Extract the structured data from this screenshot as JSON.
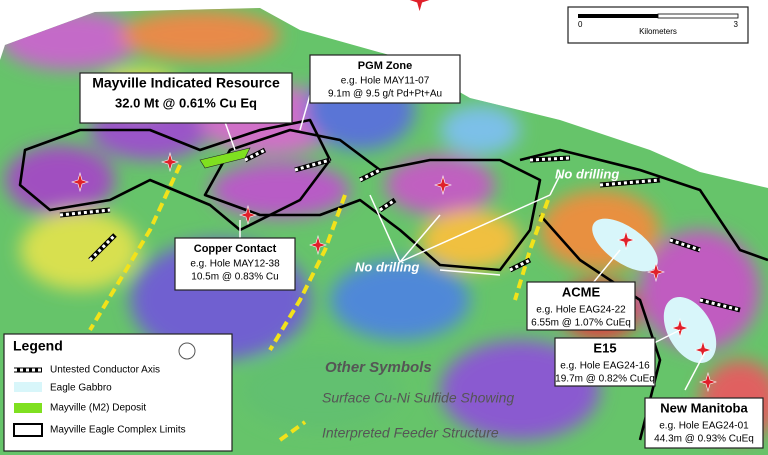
{
  "scale_bar": {
    "min": 0,
    "max": 3,
    "unit": "Kilometers"
  },
  "callouts": [
    {
      "title": "Mayville Indicated Resource",
      "lines": [
        "32.0 Mt @ 0.61% Cu Eq"
      ]
    },
    {
      "title": "PGM Zone",
      "lines": [
        "e.g. Hole MAY11-07",
        "9.1m @ 9.5 g/t Pd+Pt+Au"
      ]
    },
    {
      "title": "Copper Contact",
      "lines": [
        "e.g. Hole MAY12-38",
        "10.5m @ 0.83% Cu"
      ]
    },
    {
      "title": "ACME",
      "lines": [
        "e.g. Hole EAG24-22",
        "6.55m @ 1.07% CuEq"
      ]
    },
    {
      "title": "E15",
      "lines": [
        "e.g. Hole EAG24-16",
        "19.7m @ 0.82% CuEq"
      ]
    },
    {
      "title": "New Manitoba",
      "lines": [
        "e.g. Hole EAG24-01",
        "44.3m @ 0.93% CuEq"
      ]
    }
  ],
  "map_labels": [
    "No drilling",
    "No drilling"
  ],
  "legend": {
    "title": "Legend",
    "items": [
      "Untested Conductor Axis",
      "Eagle Gabbro",
      "Mayville (M2) Deposit",
      "Mayville Eagle Complex Limits"
    ]
  },
  "other_symbols": {
    "title": "Other Symbols",
    "items": [
      "Surface Cu-Ni Sulfide Showing",
      "Interpreted Feeder Structure"
    ]
  }
}
